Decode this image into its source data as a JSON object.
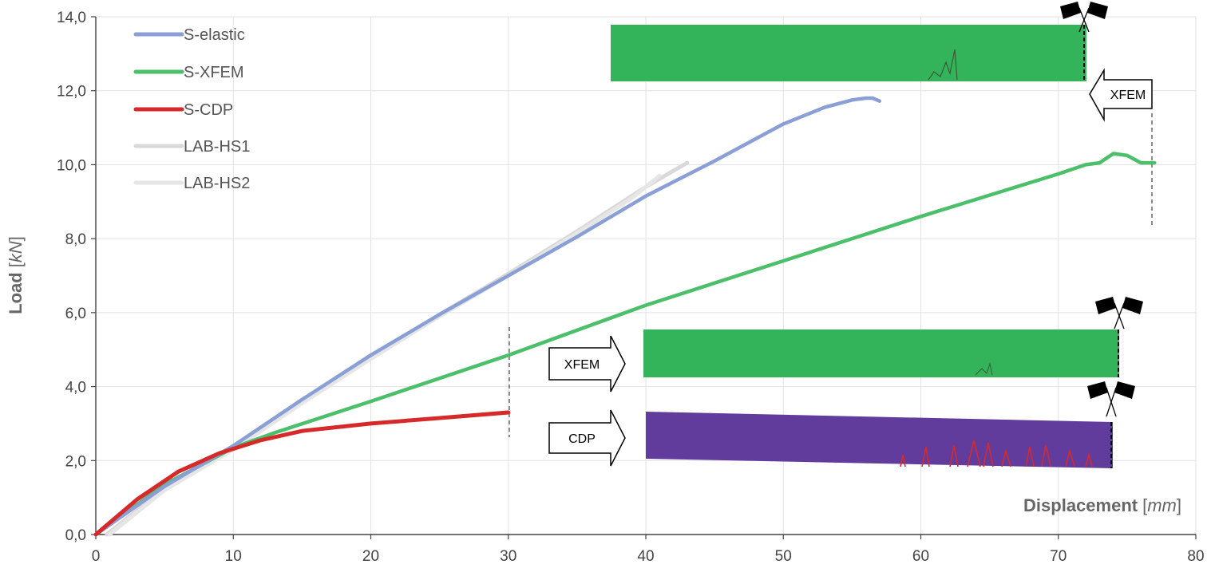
{
  "chart_data": {
    "type": "line",
    "xlabel_main": "Displacement",
    "xlabel_unit": "mm",
    "ylabel_main": "Load",
    "ylabel_unit": "kN",
    "xlim": [
      0,
      80
    ],
    "ylim": [
      0,
      14
    ],
    "x_ticks": [
      "0",
      "10",
      "20",
      "30",
      "40",
      "50",
      "60",
      "70",
      "80"
    ],
    "y_ticks": [
      "0,0",
      "2,0",
      "4,0",
      "6,0",
      "8,0",
      "10,0",
      "12,0",
      "14,0"
    ],
    "grid": true,
    "legend_position": "top-left",
    "series": [
      {
        "name": "S-elastic",
        "color": "#8a9fd6",
        "points": [
          [
            0,
            0
          ],
          [
            5,
            1.3
          ],
          [
            10,
            2.4
          ],
          [
            15,
            3.65
          ],
          [
            20,
            4.85
          ],
          [
            25,
            5.95
          ],
          [
            30,
            7.0
          ],
          [
            35,
            8.05
          ],
          [
            40,
            9.15
          ],
          [
            45,
            10.1
          ],
          [
            50,
            11.1
          ],
          [
            53,
            11.55
          ],
          [
            55,
            11.75
          ],
          [
            56,
            11.8
          ],
          [
            56.5,
            11.8
          ],
          [
            57,
            11.72
          ]
        ]
      },
      {
        "name": "S-XFEM",
        "color": "#4cbf6a",
        "points": [
          [
            0,
            0
          ],
          [
            5,
            1.35
          ],
          [
            10,
            2.35
          ],
          [
            13,
            2.75
          ],
          [
            20,
            3.6
          ],
          [
            30,
            4.85
          ],
          [
            40,
            6.2
          ],
          [
            50,
            7.4
          ],
          [
            60,
            8.6
          ],
          [
            70,
            9.75
          ],
          [
            72,
            10.0
          ],
          [
            73,
            10.05
          ],
          [
            74,
            10.3
          ],
          [
            75,
            10.25
          ],
          [
            76,
            10.05
          ],
          [
            77,
            10.05
          ]
        ]
      },
      {
        "name": "S-CDP",
        "color": "#d62a2a",
        "points": [
          [
            0,
            0
          ],
          [
            3,
            0.95
          ],
          [
            6,
            1.7
          ],
          [
            9,
            2.2
          ],
          [
            12,
            2.55
          ],
          [
            15,
            2.8
          ],
          [
            20,
            3.0
          ],
          [
            25,
            3.15
          ],
          [
            30,
            3.3
          ]
        ]
      },
      {
        "name": "LAB-HS1",
        "color": "#d9d9d9",
        "points": [
          [
            0.8,
            0
          ],
          [
            5,
            1.25
          ],
          [
            10,
            2.35
          ],
          [
            15,
            3.6
          ],
          [
            20,
            4.8
          ],
          [
            25,
            5.95
          ],
          [
            30,
            7.05
          ],
          [
            35,
            8.2
          ],
          [
            40,
            9.4
          ],
          [
            43,
            10.05
          ]
        ]
      },
      {
        "name": "LAB-HS2",
        "color": "#e6e6e6",
        "points": [
          [
            1,
            0
          ],
          [
            5,
            1.2
          ],
          [
            10,
            2.3
          ],
          [
            15,
            3.55
          ],
          [
            20,
            4.75
          ],
          [
            25,
            5.9
          ],
          [
            30,
            7.0
          ],
          [
            35,
            8.15
          ],
          [
            39,
            9.1
          ],
          [
            41,
            9.7
          ]
        ]
      }
    ],
    "annotations": [
      {
        "label": "XFEM",
        "type": "arrow-left"
      },
      {
        "label": "XFEM",
        "type": "arrow-right"
      },
      {
        "label": "CDP",
        "type": "arrow-right"
      }
    ]
  }
}
